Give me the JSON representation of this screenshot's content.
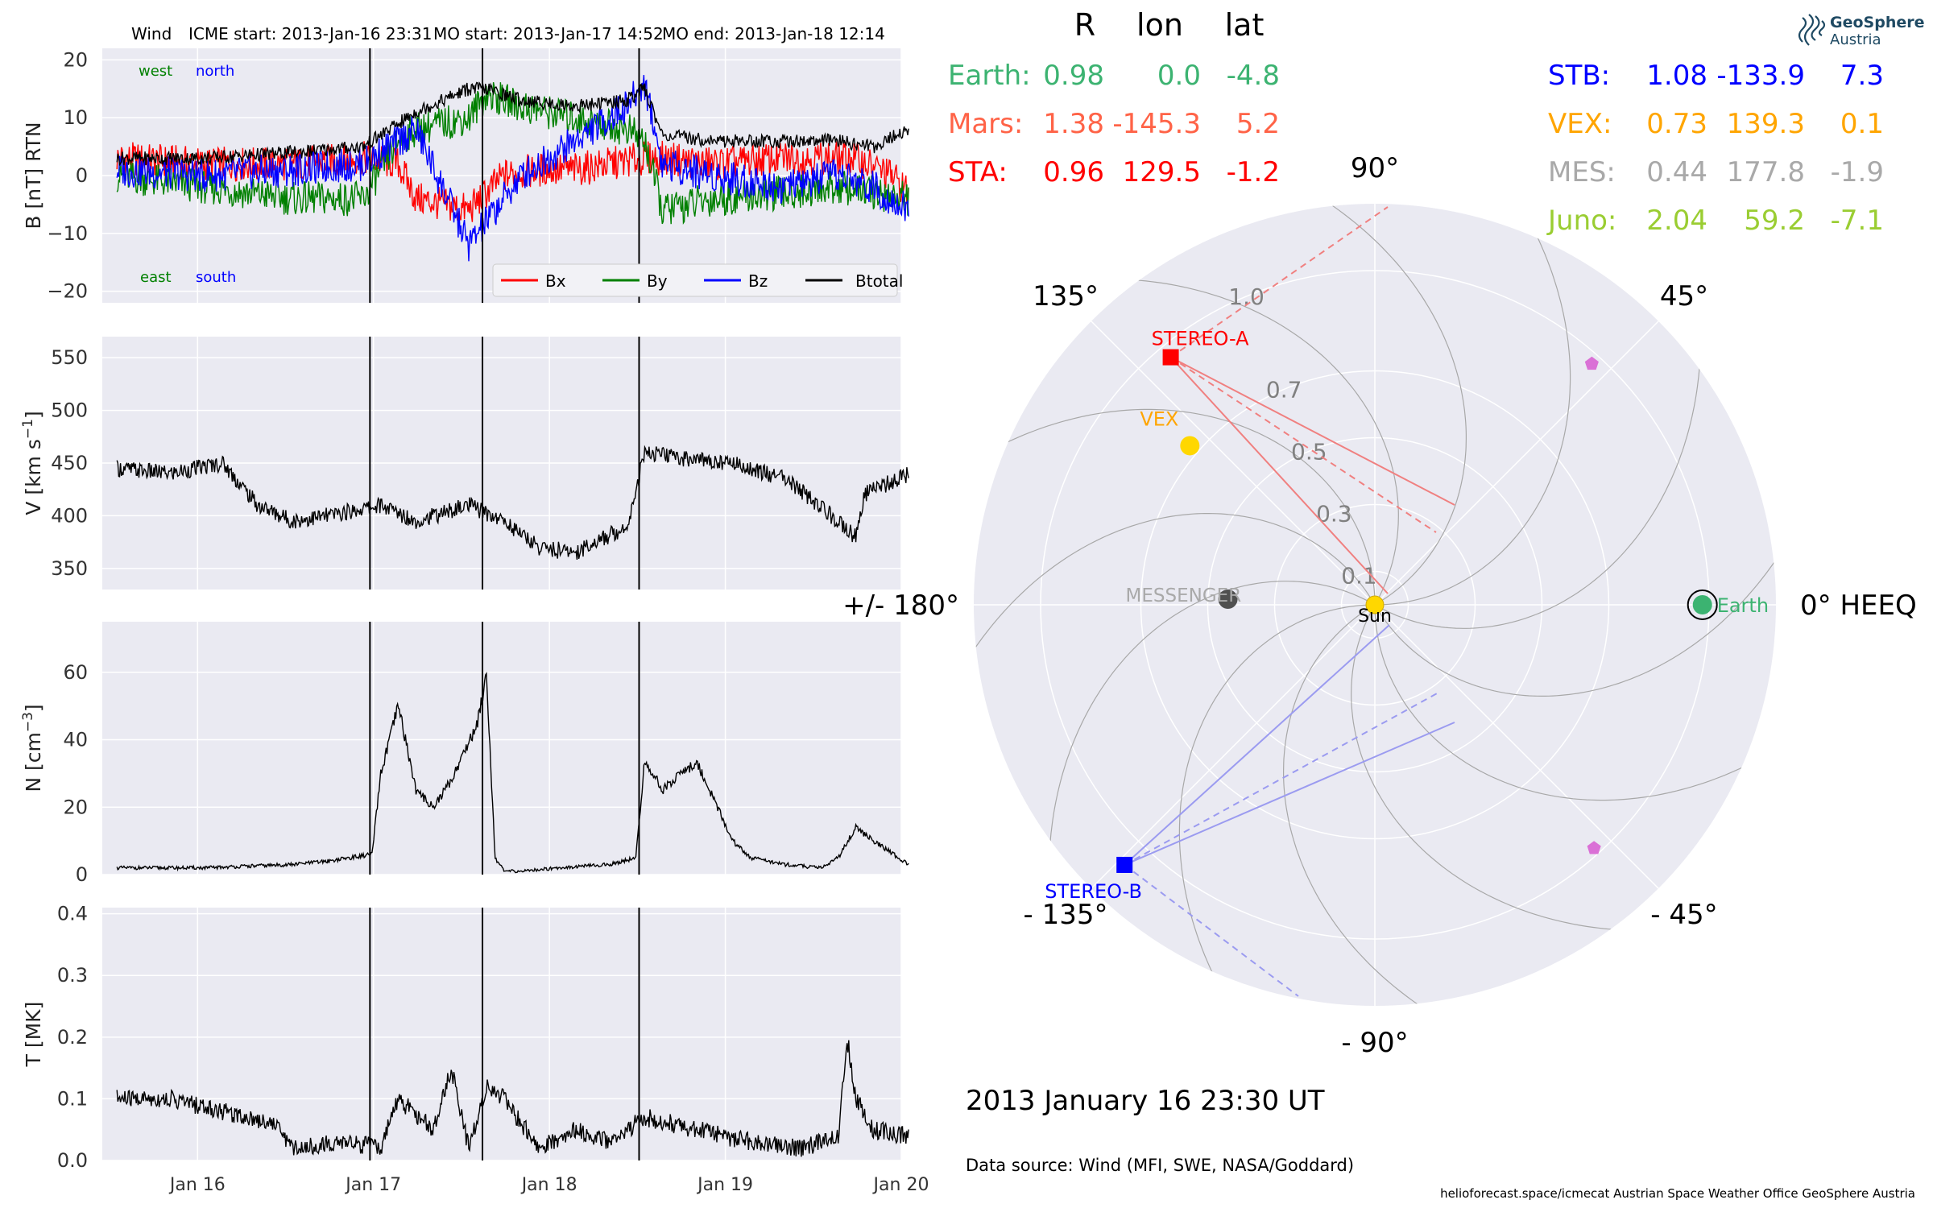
{
  "header": {
    "spacecraft": "Wind",
    "icme_start": "ICME start: 2013-Jan-16 23:31",
    "mo_start": "MO start: 2013-Jan-17 14:52",
    "mo_end": "MO end: 2013-Jan-18 12:14"
  },
  "colors": {
    "panel_bg": "#EAEAF2",
    "grid": "#ffffff",
    "bx": "#ff0000",
    "by": "#008000",
    "bz": "#0000ff",
    "btotal": "#000000",
    "earth": "#3CB371",
    "mars": "#FF6347",
    "sta": "#ff0000",
    "stb": "#0000ff",
    "vex": "#FFA500",
    "mes": "#A9A9A9",
    "juno": "#9ACD32",
    "psp": "#DA70D6",
    "sun": "#FFD700"
  },
  "chart_data": [
    {
      "type": "line",
      "panel": "magnetic_field",
      "ylabel": "B [nT] RTN",
      "ylim": [
        -22,
        22
      ],
      "yticks": [
        -20,
        -10,
        0,
        10,
        20
      ],
      "x_range": [
        "2013-01-15T11:00",
        "2013-01-20T00:00"
      ],
      "xticks": [
        "Jan 16",
        "Jan 17",
        "Jan 18",
        "Jan 19",
        "Jan 20"
      ],
      "corner_labels": {
        "west": "west",
        "north": "north",
        "east": "east",
        "south": "south"
      },
      "legend": [
        "Bx",
        "By",
        "Bz",
        "Btotal"
      ],
      "legend_position": "lower-right",
      "vertical_lines": [
        "2013-01-16T23:31",
        "2013-01-17T14:52",
        "2013-01-18T12:14"
      ],
      "series": [
        {
          "name": "Bx",
          "day": [
            0,
            0.5,
            1.0,
            1.4,
            1.6,
            1.7,
            2.0,
            2.2,
            2.4,
            2.6,
            2.8,
            3.0,
            3.1,
            3.4,
            3.8,
            4.2,
            4.4,
            4.5
          ],
          "value": [
            3,
            2,
            2,
            3,
            2,
            -4,
            -6,
            0,
            1,
            1,
            2,
            3,
            3,
            2,
            3,
            3,
            0,
            -3
          ]
        },
        {
          "name": "By",
          "day": [
            0,
            0.5,
            1.0,
            1.4,
            1.6,
            1.7,
            2.0,
            2.1,
            2.3,
            2.6,
            2.9,
            3.0,
            3.1,
            3.4,
            3.8,
            4.1,
            4.3,
            4.5
          ],
          "value": [
            0,
            -2,
            -4,
            -4,
            6,
            8,
            10,
            14,
            12,
            10,
            8,
            6,
            -6,
            -4,
            -3,
            -2,
            -3,
            -4
          ]
        },
        {
          "name": "Bz",
          "day": [
            0,
            0.5,
            1.0,
            1.4,
            1.6,
            1.7,
            2.0,
            2.1,
            2.3,
            2.6,
            2.9,
            3.0,
            3.1,
            3.4,
            3.8,
            4.1,
            4.3,
            4.5
          ],
          "value": [
            1,
            0,
            1,
            2,
            6,
            8,
            -12,
            -8,
            0,
            6,
            12,
            16,
            2,
            0,
            -2,
            0,
            -2,
            -6
          ]
        },
        {
          "name": "Btotal",
          "day": [
            0,
            0.5,
            1.0,
            1.4,
            1.6,
            1.7,
            2.0,
            2.1,
            2.3,
            2.6,
            2.9,
            3.0,
            3.1,
            3.4,
            3.8,
            4.1,
            4.3,
            4.5
          ],
          "value": [
            3,
            3,
            4,
            5,
            9,
            11,
            15,
            15,
            13,
            12,
            13,
            15,
            7,
            6,
            6,
            6,
            5,
            8
          ]
        }
      ]
    },
    {
      "type": "line",
      "panel": "speed",
      "ylabel": "V [km s",
      "ylabel_sup": "−1",
      "ylabel_tail": "]",
      "ylim": [
        330,
        570
      ],
      "yticks": [
        350,
        400,
        450,
        500,
        550
      ],
      "vertical_lines": [
        "2013-01-16T23:31",
        "2013-01-17T14:52",
        "2013-01-18T12:14"
      ],
      "series": [
        {
          "name": "V",
          "day": [
            0,
            0.3,
            0.6,
            0.8,
            1.0,
            1.2,
            1.5,
            1.7,
            2.0,
            2.2,
            2.4,
            2.6,
            2.9,
            3.0,
            3.2,
            3.5,
            3.8,
            4.1,
            4.2,
            4.25,
            4.5
          ],
          "value": [
            445,
            440,
            450,
            410,
            395,
            400,
            410,
            395,
            410,
            395,
            370,
            365,
            390,
            460,
            455,
            450,
            435,
            395,
            380,
            420,
            440
          ]
        }
      ]
    },
    {
      "type": "line",
      "panel": "density",
      "ylabel": "N [cm",
      "ylabel_sup": "−3",
      "ylabel_tail": "]",
      "ylim": [
        0,
        75
      ],
      "yticks": [
        0,
        20,
        40,
        60
      ],
      "vertical_lines": [
        "2013-01-16T23:31",
        "2013-01-17T14:52",
        "2013-01-18T12:14"
      ],
      "series": [
        {
          "name": "N",
          "day": [
            0,
            0.5,
            1.0,
            1.2,
            1.45,
            1.5,
            1.6,
            1.7,
            1.8,
            1.9,
            2.05,
            2.1,
            2.15,
            2.2,
            2.3,
            2.5,
            2.8,
            2.95,
            3.0,
            3.1,
            3.2,
            3.3,
            3.5,
            3.6,
            3.8,
            4.0,
            4.1,
            4.2,
            4.3,
            4.5
          ],
          "value": [
            2,
            2,
            3,
            4,
            6,
            30,
            50,
            25,
            20,
            28,
            45,
            60,
            5,
            1,
            1,
            2,
            3,
            5,
            34,
            25,
            30,
            33,
            10,
            5,
            3,
            2,
            5,
            14,
            10,
            3
          ]
        }
      ]
    },
    {
      "type": "line",
      "panel": "temperature",
      "ylabel": "T [MK]",
      "ylim": [
        0,
        0.41
      ],
      "yticks": [
        0.0,
        0.1,
        0.2,
        0.3,
        0.4
      ],
      "vertical_lines": [
        "2013-01-16T23:31",
        "2013-01-17T14:52",
        "2013-01-18T12:14"
      ],
      "series": [
        {
          "name": "T",
          "day": [
            0,
            0.3,
            0.6,
            0.9,
            1.0,
            1.3,
            1.5,
            1.6,
            1.8,
            1.9,
            2.0,
            2.1,
            2.2,
            2.4,
            2.6,
            2.8,
            2.95,
            3.0,
            3.3,
            3.6,
            3.9,
            4.1,
            4.15,
            4.2,
            4.3,
            4.5
          ],
          "value": [
            0.1,
            0.1,
            0.08,
            0.06,
            0.02,
            0.03,
            0.02,
            0.1,
            0.05,
            0.15,
            0.02,
            0.12,
            0.1,
            0.02,
            0.05,
            0.03,
            0.06,
            0.07,
            0.05,
            0.03,
            0.02,
            0.04,
            0.2,
            0.1,
            0.05,
            0.04
          ]
        }
      ]
    },
    {
      "type": "polar",
      "panel": "heeq_position_plot",
      "angle_labels": [
        {
          "text": "0° HEEQ",
          "angle": 0
        },
        {
          "text": "45°",
          "angle": 45
        },
        {
          "text": "90°",
          "angle": 90
        },
        {
          "text": "135°",
          "angle": 135
        },
        {
          "text": "+/- 180°",
          "angle": 180
        },
        {
          "text": "- 135°",
          "angle": -135
        },
        {
          "text": "- 90°",
          "angle": -90
        },
        {
          "text": "- 45°",
          "angle": -45
        }
      ],
      "radial_rings": [
        0.1,
        0.3,
        0.5,
        0.7,
        1.0
      ],
      "radial_tick_labels": [
        "0.1",
        "0.3",
        "0.5",
        "0.7",
        "1.0"
      ],
      "rmax": 1.2,
      "objects": [
        {
          "name": "Sun",
          "label": "Sun",
          "r": 0.0,
          "lon": 0
        },
        {
          "name": "Earth",
          "label": "Earth",
          "r": 0.98,
          "lon": 0.0
        },
        {
          "name": "STEREO-A",
          "label": "STEREO-A",
          "r": 0.96,
          "lon": 129.5
        },
        {
          "name": "STEREO-B",
          "label": "STEREO-B",
          "r": 1.08,
          "lon": -133.9
        },
        {
          "name": "VEX",
          "label": "VEX",
          "r": 0.73,
          "lon": 139.3
        },
        {
          "name": "MESSENGER",
          "label": "MESSENGER",
          "r": 0.44,
          "lon": 177.8
        },
        {
          "name": "Juno (1)",
          "label": "",
          "r": 0.97,
          "lon": 48
        },
        {
          "name": "Juno (2)",
          "label": "",
          "r": 0.98,
          "lon": -48
        }
      ]
    }
  ],
  "position_table": {
    "headers": [
      "R",
      "lon",
      "lat"
    ],
    "left": [
      {
        "name": "Earth:",
        "r": "0.98",
        "lon": "0.0",
        "lat": "-4.8",
        "color": "#3CB371"
      },
      {
        "name": "Mars:",
        "r": "1.38",
        "lon": "-145.3",
        "lat": "5.2",
        "color": "#FF6347"
      },
      {
        "name": "STA:",
        "r": "0.96",
        "lon": "129.5",
        "lat": "-1.2",
        "color": "#ff0000"
      }
    ],
    "right": [
      {
        "name": "STB:",
        "r": "1.08",
        "lon": "-133.9",
        "lat": "7.3",
        "color": "#0000ff"
      },
      {
        "name": "VEX:",
        "r": "0.73",
        "lon": "139.3",
        "lat": "0.1",
        "color": "#FFA500"
      },
      {
        "name": "MES:",
        "r": "0.44",
        "lon": "177.8",
        "lat": "-1.9",
        "color": "#A9A9A9"
      },
      {
        "name": "Juno:",
        "r": "2.04",
        "lon": "59.2",
        "lat": "-7.1",
        "color": "#9ACD32"
      }
    ]
  },
  "logo": {
    "line1": "GeoSphere",
    "line2": "Austria"
  },
  "footer": {
    "date": "2013 January 16  23:30 UT",
    "source": "Data source: Wind (MFI, SWE, NASA/Goddard)",
    "credits": "helioforecast.space/icmecat   Austrian Space Weather Office   GeoSphere Austria"
  }
}
